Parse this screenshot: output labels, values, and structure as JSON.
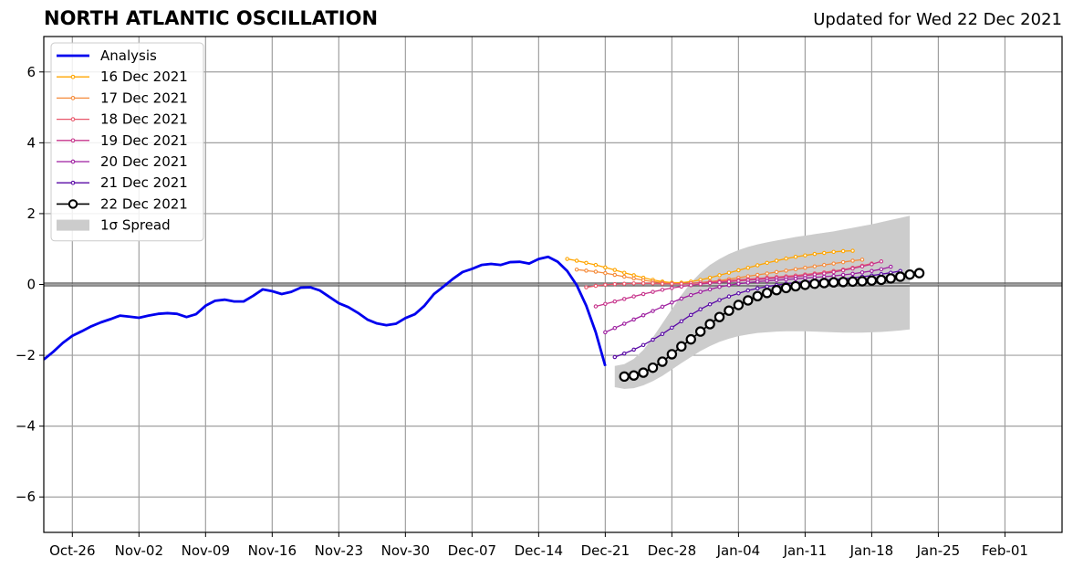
{
  "chart_data": {
    "type": "line",
    "title": "NORTH ATLANTIC OSCILLATION",
    "subtitle": "Updated for Wed 22 Dec 2021",
    "xlabel": "",
    "ylabel": "",
    "xlim": [
      "2021-10-23",
      "2022-02-07"
    ],
    "ylim": [
      -7,
      7
    ],
    "x_ticks": [
      "Oct-26",
      "Nov-02",
      "Nov-09",
      "Nov-16",
      "Nov-23",
      "Nov-30",
      "Dec-07",
      "Dec-14",
      "Dec-21",
      "Dec-28",
      "Jan-04",
      "Jan-11",
      "Jan-18",
      "Jan-25",
      "Feb-01"
    ],
    "x_tick_dates": [
      "2021-10-26",
      "2021-11-02",
      "2021-11-09",
      "2021-11-16",
      "2021-11-23",
      "2021-11-30",
      "2021-12-07",
      "2021-12-14",
      "2021-12-21",
      "2021-12-28",
      "2022-01-04",
      "2022-01-11",
      "2022-01-18",
      "2022-01-25",
      "2022-02-01"
    ],
    "y_ticks": [
      "−6",
      "−4",
      "−2",
      "0",
      "2",
      "4",
      "6"
    ],
    "y_tick_values": [
      -6,
      -4,
      -2,
      0,
      2,
      4,
      6
    ],
    "grid": true,
    "legend_position": "top-left",
    "analysis": {
      "name": "Analysis",
      "color": "#0000ee",
      "x": [
        "2021-10-23",
        "2021-10-24",
        "2021-10-25",
        "2021-10-26",
        "2021-10-27",
        "2021-10-28",
        "2021-10-29",
        "2021-10-30",
        "2021-10-31",
        "2021-11-01",
        "2021-11-02",
        "2021-11-03",
        "2021-11-04",
        "2021-11-05",
        "2021-11-06",
        "2021-11-07",
        "2021-11-08",
        "2021-11-09",
        "2021-11-10",
        "2021-11-11",
        "2021-11-12",
        "2021-11-13",
        "2021-11-14",
        "2021-11-15",
        "2021-11-16",
        "2021-11-17",
        "2021-11-18",
        "2021-11-19",
        "2021-11-20",
        "2021-11-21",
        "2021-11-22",
        "2021-11-23",
        "2021-11-24",
        "2021-11-25",
        "2021-11-26",
        "2021-11-27",
        "2021-11-28",
        "2021-11-29",
        "2021-11-30",
        "2021-12-01",
        "2021-12-02",
        "2021-12-03",
        "2021-12-04",
        "2021-12-05",
        "2021-12-06",
        "2021-12-07",
        "2021-12-08",
        "2021-12-09",
        "2021-12-10",
        "2021-12-11",
        "2021-12-12",
        "2021-12-13",
        "2021-12-14",
        "2021-12-15",
        "2021-12-16",
        "2021-12-17",
        "2021-12-18",
        "2021-12-19",
        "2021-12-20",
        "2021-12-21"
      ],
      "values": [
        -2.12,
        -1.9,
        -1.65,
        -1.45,
        -1.32,
        -1.18,
        -1.07,
        -0.98,
        -0.88,
        -0.91,
        -0.94,
        -0.88,
        -0.83,
        -0.81,
        -0.83,
        -0.92,
        -0.84,
        -0.6,
        -0.46,
        -0.43,
        -0.48,
        -0.48,
        -0.32,
        -0.14,
        -0.19,
        -0.27,
        -0.21,
        -0.09,
        -0.08,
        -0.17,
        -0.35,
        -0.53,
        -0.64,
        -0.8,
        -0.99,
        -1.1,
        -1.15,
        -1.11,
        -0.95,
        -0.84,
        -0.6,
        -0.27,
        -0.06,
        0.16,
        0.35,
        0.44,
        0.55,
        0.58,
        0.55,
        0.63,
        0.64,
        0.59,
        0.72,
        0.78,
        0.64,
        0.38,
        -0.02,
        -0.6,
        -1.35,
        -2.3
      ]
    },
    "forecasts": [
      {
        "name": "16 Dec 2021",
        "color": "#ffa500",
        "start": "2021-12-17",
        "values": [
          0.72,
          0.67,
          0.61,
          0.55,
          0.48,
          0.41,
          0.33,
          0.26,
          0.19,
          0.13,
          0.08,
          0.05,
          0.05,
          0.08,
          0.13,
          0.19,
          0.26,
          0.33,
          0.4,
          0.47,
          0.54,
          0.61,
          0.67,
          0.73,
          0.78,
          0.82,
          0.86,
          0.89,
          0.92,
          0.94,
          0.95
        ]
      },
      {
        "name": "17 Dec 2021",
        "color": "#f58b3a",
        "start": "2021-12-18",
        "values": [
          0.42,
          0.39,
          0.36,
          0.32,
          0.27,
          0.22,
          0.17,
          0.12,
          0.08,
          0.05,
          0.03,
          0.02,
          0.03,
          0.05,
          0.08,
          0.11,
          0.15,
          0.19,
          0.23,
          0.27,
          0.31,
          0.35,
          0.39,
          0.43,
          0.47,
          0.51,
          0.55,
          0.59,
          0.63,
          0.67,
          0.7
        ]
      },
      {
        "name": "18 Dec 2021",
        "color": "#e8576b",
        "start": "2021-12-19",
        "values": [
          -0.08,
          -0.04,
          -0.01,
          0.01,
          0.02,
          0.03,
          0.03,
          0.03,
          0.02,
          0.02,
          0.02,
          0.03,
          0.05,
          0.07,
          0.09,
          0.11,
          0.13,
          0.15,
          0.17,
          0.19,
          0.21,
          0.23,
          0.25,
          0.28,
          0.31,
          0.34,
          0.38,
          0.42,
          0.47,
          0.53,
          0.59
        ]
      },
      {
        "name": "19 Dec 2021",
        "color": "#c7358c",
        "start": "2021-12-20",
        "values": [
          -0.62,
          -0.55,
          -0.48,
          -0.41,
          -0.34,
          -0.27,
          -0.21,
          -0.15,
          -0.1,
          -0.06,
          -0.02,
          0.01,
          0.04,
          0.06,
          0.08,
          0.1,
          0.12,
          0.14,
          0.16,
          0.18,
          0.2,
          0.22,
          0.25,
          0.28,
          0.31,
          0.35,
          0.4,
          0.45,
          0.51,
          0.57,
          0.65
        ]
      },
      {
        "name": "20 Dec 2021",
        "color": "#9e1fa0",
        "start": "2021-12-21",
        "values": [
          -1.35,
          -1.23,
          -1.11,
          -0.99,
          -0.87,
          -0.75,
          -0.63,
          -0.51,
          -0.4,
          -0.3,
          -0.21,
          -0.14,
          -0.07,
          -0.02,
          0.02,
          0.05,
          0.08,
          0.1,
          0.12,
          0.14,
          0.16,
          0.18,
          0.2,
          0.22,
          0.24,
          0.27,
          0.3,
          0.34,
          0.38,
          0.43,
          0.5
        ]
      },
      {
        "name": "21 Dec 2021",
        "color": "#5a0aa6",
        "start": "2021-12-22",
        "values": [
          -2.05,
          -1.95,
          -1.84,
          -1.71,
          -1.56,
          -1.4,
          -1.22,
          -1.04,
          -0.86,
          -0.7,
          -0.56,
          -0.44,
          -0.34,
          -0.25,
          -0.17,
          -0.11,
          -0.06,
          -0.02,
          0.02,
          0.05,
          0.08,
          0.1,
          0.12,
          0.14,
          0.16,
          0.19,
          0.22,
          0.25,
          0.29,
          0.33,
          0.38
        ]
      },
      {
        "name": "22 Dec 2021",
        "color": "#000000",
        "start": "2021-12-23",
        "values": [
          -2.6,
          -2.57,
          -2.49,
          -2.35,
          -2.18,
          -1.97,
          -1.75,
          -1.55,
          -1.33,
          -1.12,
          -0.92,
          -0.74,
          -0.58,
          -0.45,
          -0.33,
          -0.24,
          -0.16,
          -0.1,
          -0.05,
          -0.01,
          0.02,
          0.04,
          0.06,
          0.07,
          0.08,
          0.09,
          0.11,
          0.13,
          0.17,
          0.22,
          0.28,
          0.32
        ]
      }
    ],
    "spread": {
      "name": "1σ Spread",
      "color": "#cccccc",
      "start": "2021-12-22",
      "upper": [
        -2.3,
        -2.25,
        -2.1,
        -1.85,
        -1.5,
        -1.1,
        -0.7,
        -0.3,
        0.05,
        0.33,
        0.55,
        0.72,
        0.86,
        0.97,
        1.06,
        1.13,
        1.19,
        1.24,
        1.29,
        1.34,
        1.38,
        1.42,
        1.46,
        1.5,
        1.55,
        1.6,
        1.65,
        1.7,
        1.76,
        1.82,
        1.88,
        1.94
      ],
      "lower": [
        -2.9,
        -2.95,
        -2.93,
        -2.85,
        -2.73,
        -2.58,
        -2.4,
        -2.22,
        -2.05,
        -1.88,
        -1.74,
        -1.62,
        -1.53,
        -1.46,
        -1.41,
        -1.37,
        -1.35,
        -1.33,
        -1.32,
        -1.32,
        -1.32,
        -1.33,
        -1.34,
        -1.35,
        -1.36,
        -1.36,
        -1.36,
        -1.35,
        -1.34,
        -1.32,
        -1.3,
        -1.27
      ]
    }
  }
}
